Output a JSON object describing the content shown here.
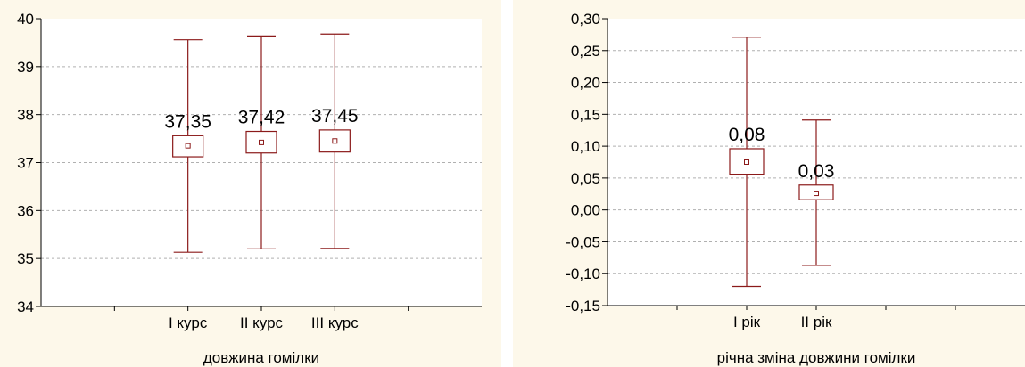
{
  "chart_data": [
    {
      "type": "box",
      "title": "",
      "xlabel": "довжина гомілки",
      "ylabel": "",
      "ylim": [
        34,
        40
      ],
      "yticks": [
        "34",
        "35",
        "36",
        "37",
        "38",
        "39",
        "40"
      ],
      "grid": true,
      "categories": [
        "I курс",
        "II курс",
        "III курс"
      ],
      "mean": [
        37.35,
        37.42,
        37.45
      ],
      "box_low": [
        37.12,
        37.2,
        37.22
      ],
      "box_high": [
        37.56,
        37.65,
        37.68
      ],
      "whisker_low": [
        35.13,
        35.2,
        35.21
      ],
      "whisker_high": [
        39.56,
        39.64,
        39.68
      ],
      "value_labels": [
        "37,35",
        "37,42",
        "37,45"
      ]
    },
    {
      "type": "box",
      "title": "",
      "xlabel": "річна зміна довжини гомілки",
      "ylabel": "",
      "ylim": [
        -0.15,
        0.3
      ],
      "yticks": [
        "-0,15",
        "-0,10",
        "-0,05",
        "0,00",
        "0,05",
        "0,10",
        "0,15",
        "0,20",
        "0,25",
        "0,30"
      ],
      "grid": true,
      "categories": [
        "I рік",
        "II рік"
      ],
      "mean": [
        0.075,
        0.026
      ],
      "box_low": [
        0.056,
        0.016
      ],
      "box_high": [
        0.096,
        0.039
      ],
      "whisker_low": [
        -0.12,
        -0.087
      ],
      "whisker_high": [
        0.271,
        0.141
      ],
      "value_labels": [
        "0,08",
        "0,03"
      ]
    }
  ],
  "colors": {
    "panel_background": "#fdf8ea",
    "plot_background": "#ffffff",
    "box_stroke": "#8b1a1a",
    "grid": "#b0b0b0",
    "axis": "#000000"
  }
}
